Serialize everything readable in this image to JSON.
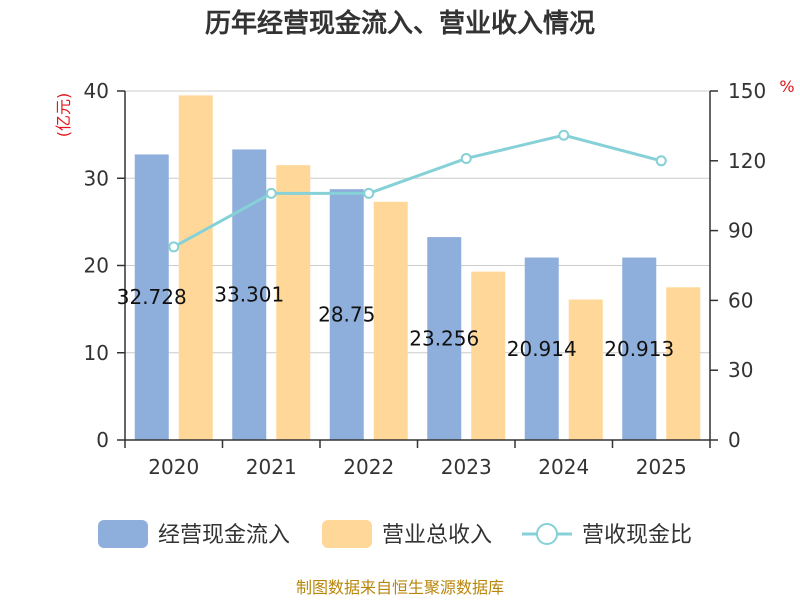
{
  "title": "历年经营现金流入、营业收入情况",
  "source": "制图数据来自恒生聚源数据库",
  "y_left_unit": "(亿元)",
  "y_right_unit": "%",
  "colors": {
    "cash_inflow": "#8eaedb",
    "revenue": "#ffd899",
    "ratio": "#86d1d8"
  },
  "chart_data": {
    "type": "bar",
    "title": "历年经营现金流入、营业收入情况",
    "categories": [
      "2020",
      "2021",
      "2022",
      "2023",
      "2024",
      "2025"
    ],
    "series": [
      {
        "name": "经营现金流入",
        "type": "bar",
        "axis": "left",
        "values": [
          32.728,
          33.301,
          28.75,
          23.256,
          20.914,
          20.913
        ]
      },
      {
        "name": "营业总收入",
        "type": "bar",
        "axis": "left",
        "values": [
          39.5,
          31.5,
          27.3,
          19.3,
          16.1,
          17.5
        ]
      },
      {
        "name": "营收现金比",
        "type": "line",
        "axis": "right",
        "values": [
          83,
          106,
          106,
          121,
          131,
          120
        ]
      }
    ],
    "data_labels": [
      "32.728",
      "33.301",
      "28.75",
      "23.256",
      "20.914",
      "20.913"
    ],
    "y_left": {
      "min": 0,
      "max": 40,
      "ticks": [
        0,
        10,
        20,
        30,
        40
      ]
    },
    "y_right": {
      "min": 0,
      "max": 150,
      "ticks": [
        0,
        30,
        60,
        90,
        120,
        150
      ]
    },
    "grid": true,
    "legend_position": "bottom"
  }
}
